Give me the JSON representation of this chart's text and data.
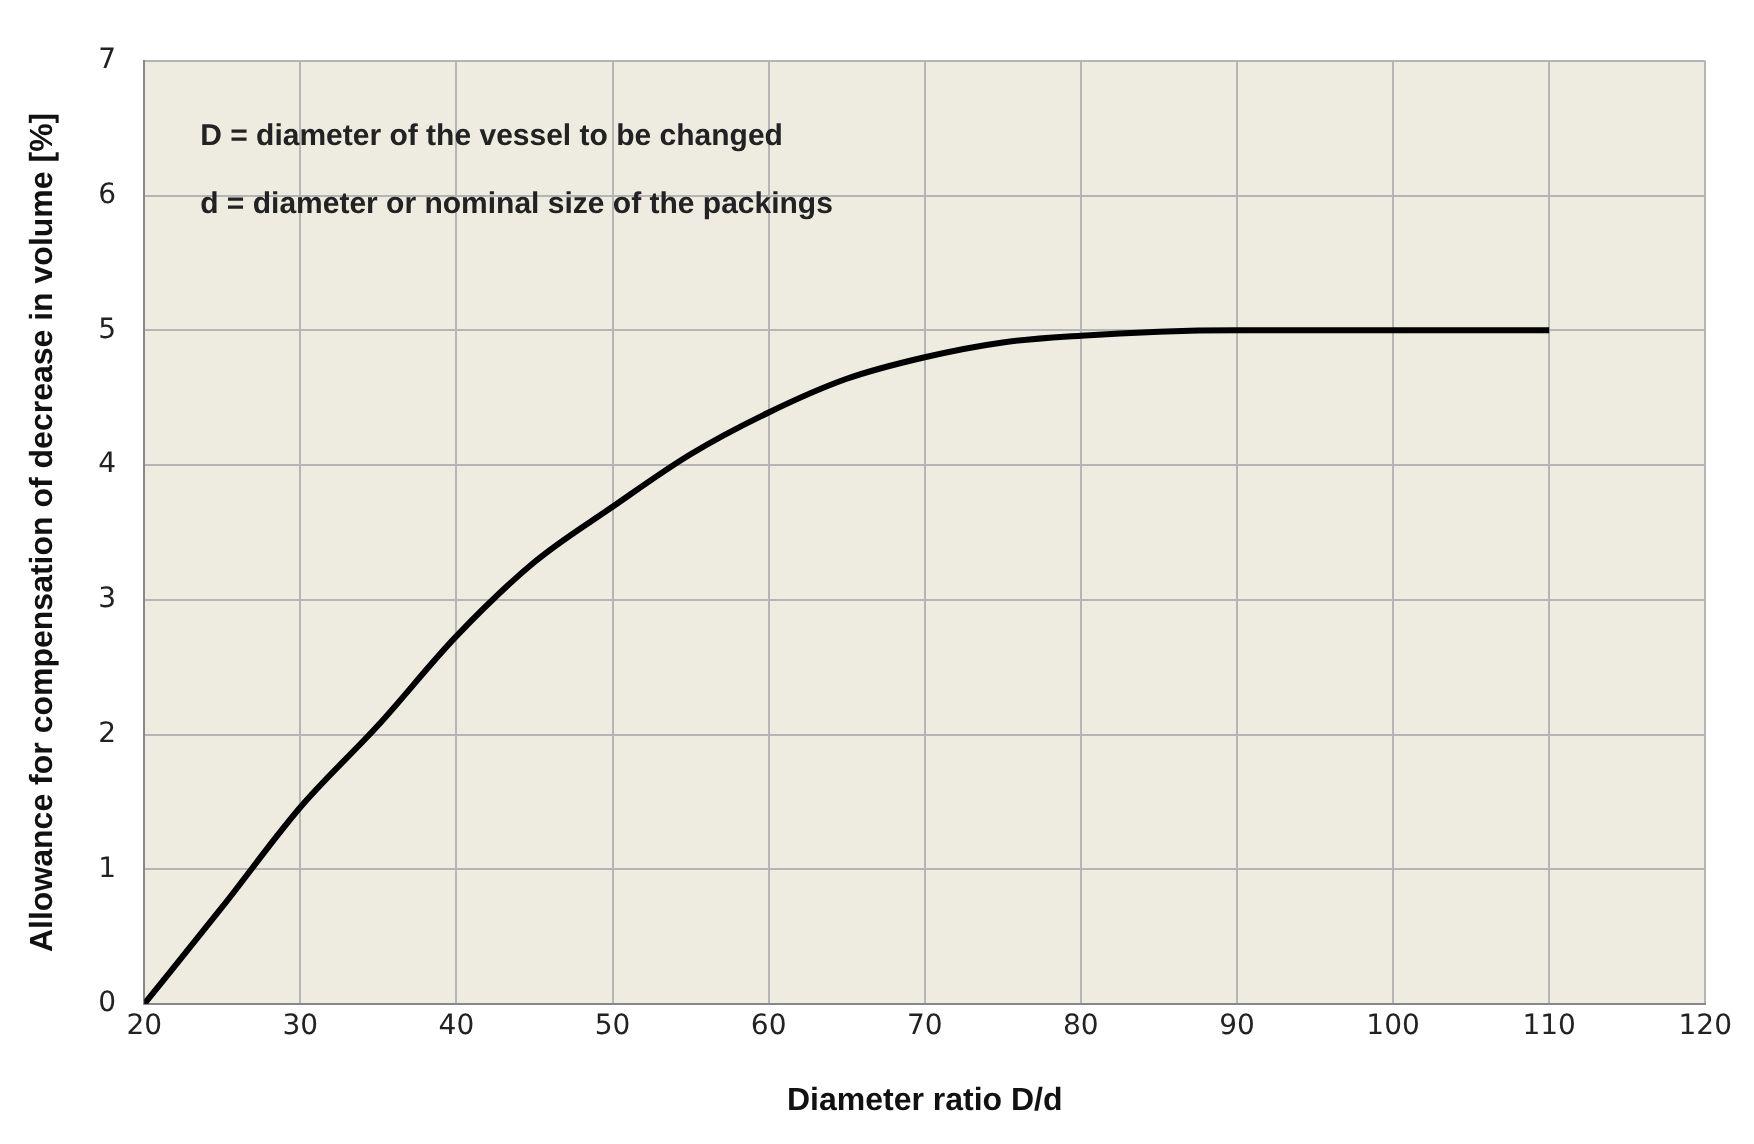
{
  "chart_data": {
    "type": "line",
    "xlabel": "Diameter ratio D/d",
    "ylabel": "Allowance for compensation of decrease in volume [%]",
    "annotations": [
      "D = diameter of the vessel to be changed",
      "d = diameter or nominal size of the packings"
    ],
    "x": [
      20,
      25,
      30,
      35,
      40,
      45,
      50,
      55,
      60,
      65,
      70,
      75,
      80,
      85,
      90,
      100,
      110
    ],
    "series": [
      {
        "color": "#000000",
        "values": [
          0,
          0.72,
          1.46,
          2.07,
          2.73,
          3.28,
          3.69,
          4.08,
          4.39,
          4.64,
          4.8,
          4.91,
          4.96,
          4.99,
          5,
          5,
          5
        ]
      }
    ],
    "xlim": [
      20,
      120
    ],
    "xticks": [
      20,
      30,
      40,
      50,
      60,
      70,
      80,
      90,
      100,
      110,
      120
    ],
    "ylim": [
      0,
      7
    ],
    "yticks": [
      0,
      1,
      2,
      3,
      4,
      5,
      6,
      7
    ],
    "grid": true,
    "legend": false,
    "marker": "none",
    "line_style": "solid"
  }
}
